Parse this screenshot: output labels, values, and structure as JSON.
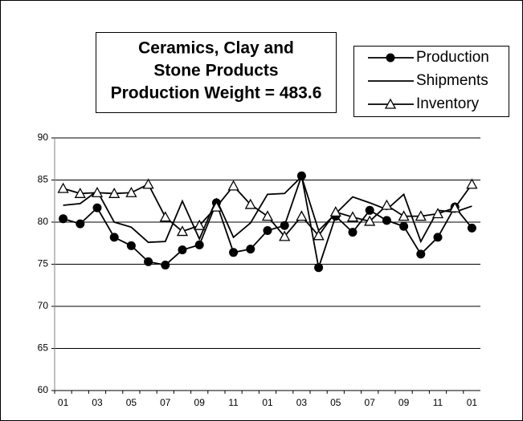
{
  "chart_data": {
    "type": "line",
    "title": [
      "Ceramics, Clay and",
      "Stone Products",
      "Production Weight = 483.6"
    ],
    "categories": [
      "01",
      null,
      "03",
      null,
      "05",
      null,
      "07",
      null,
      "09",
      null,
      "11",
      null,
      "01",
      null,
      "03",
      null,
      "05",
      null,
      "07",
      null,
      "09",
      null,
      "11",
      null,
      "01"
    ],
    "series": [
      {
        "name": "Production",
        "color": "#000000",
        "marker": "circle",
        "values": [
          80.4,
          79.8,
          81.7,
          78.2,
          77.2,
          75.3,
          74.9,
          76.7,
          77.3,
          82.3,
          76.4,
          76.8,
          79.0,
          79.6,
          85.5,
          74.6,
          80.7,
          78.8,
          81.4,
          80.2,
          79.5,
          76.2,
          78.2,
          81.8,
          79.3
        ]
      },
      {
        "name": "Shipments",
        "color": "#000000",
        "marker": "none",
        "values": [
          82.0,
          82.2,
          83.7,
          80.0,
          79.4,
          77.6,
          77.7,
          82.5,
          78.0,
          82.7,
          78.2,
          79.9,
          83.3,
          83.4,
          85.4,
          79.0,
          81.0,
          83.0,
          82.3,
          81.5,
          83.3,
          77.7,
          81.4,
          81.2,
          81.9
        ]
      },
      {
        "name": "Inventory",
        "color": "#000000",
        "marker": "triangle",
        "values": [
          84.0,
          83.4,
          83.5,
          83.4,
          83.5,
          84.5,
          80.6,
          78.9,
          79.6,
          81.8,
          84.3,
          82.1,
          80.7,
          78.3,
          80.7,
          78.4,
          81.2,
          80.6,
          80.1,
          82.0,
          80.7,
          80.7,
          81.0,
          81.7,
          84.5
        ]
      }
    ],
    "ylim": [
      60,
      90
    ],
    "yticks": [
      60,
      65,
      70,
      75,
      80,
      85,
      90
    ],
    "grid": true,
    "legend": "top-right"
  }
}
